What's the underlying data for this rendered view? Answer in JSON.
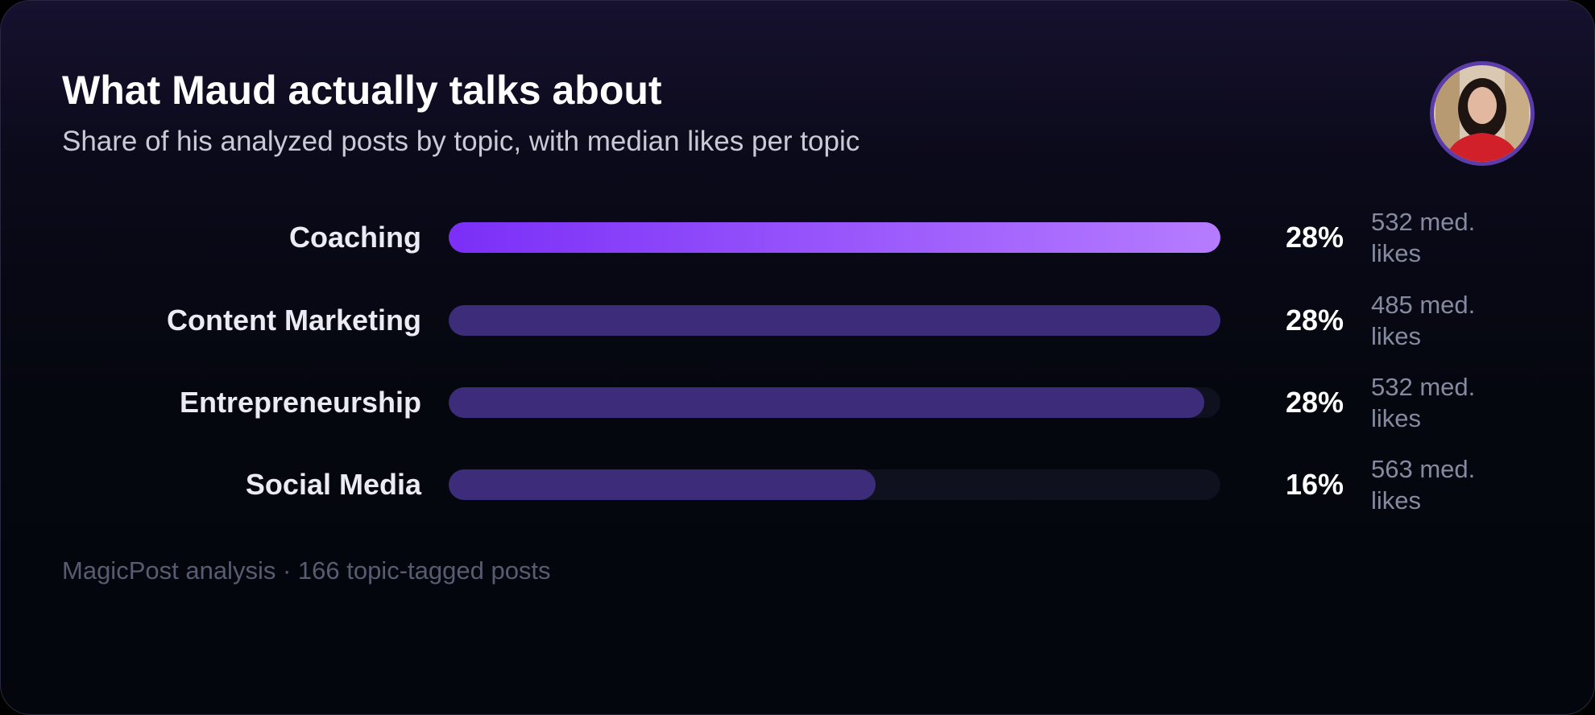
{
  "chart_data": {
    "type": "bar",
    "orientation": "horizontal",
    "title": "What Maud actually talks about",
    "subtitle": "Share of his analyzed posts by topic, with median likes per topic",
    "categories": [
      "Coaching",
      "Content Marketing",
      "Entrepreneurship",
      "Social Media"
    ],
    "values": [
      28.4,
      28.4,
      27.8,
      15.7
    ],
    "value_labels": [
      "28%",
      "28%",
      "28%",
      "16%"
    ],
    "median_likes_labels": [
      "532 med. likes",
      "485 med. likes",
      "532 med. likes",
      "563 med. likes"
    ],
    "xlim": [
      0,
      28.4
    ],
    "bar_fills": [
      [
        "#7b2ff7",
        "#b57cff"
      ],
      [
        "#3d2c7a"
      ],
      [
        "#3d2c7a"
      ],
      [
        "#3d2c7a"
      ]
    ],
    "footer": "MagicPost analysis · 166 topic-tagged posts"
  }
}
